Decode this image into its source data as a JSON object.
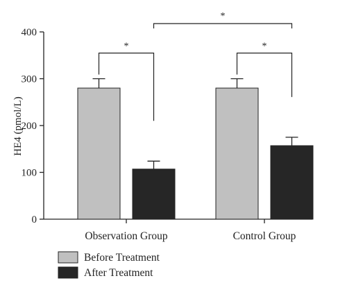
{
  "chart_data": {
    "type": "bar",
    "ylabel": "HE4 (pmol/L)",
    "ylim": [
      0,
      400
    ],
    "yticks": [
      0,
      100,
      200,
      300,
      400
    ],
    "categories": [
      "Observation Group",
      "Control Group"
    ],
    "series": [
      {
        "name": "Before Treatment",
        "color": "#c0c0c0",
        "values": [
          280,
          280
        ],
        "errors": [
          20,
          20
        ]
      },
      {
        "name": "After Treatment",
        "color": "#262626",
        "values": [
          107,
          157
        ],
        "errors": [
          17,
          18
        ]
      }
    ],
    "legend_position": "bottom-left",
    "significance": [
      {
        "label": "*",
        "description": "Observation Group: Before vs After"
      },
      {
        "label": "*",
        "description": "Control Group: Before vs After"
      },
      {
        "label": "*",
        "description": "After Treatment: Observation vs Control"
      }
    ]
  }
}
